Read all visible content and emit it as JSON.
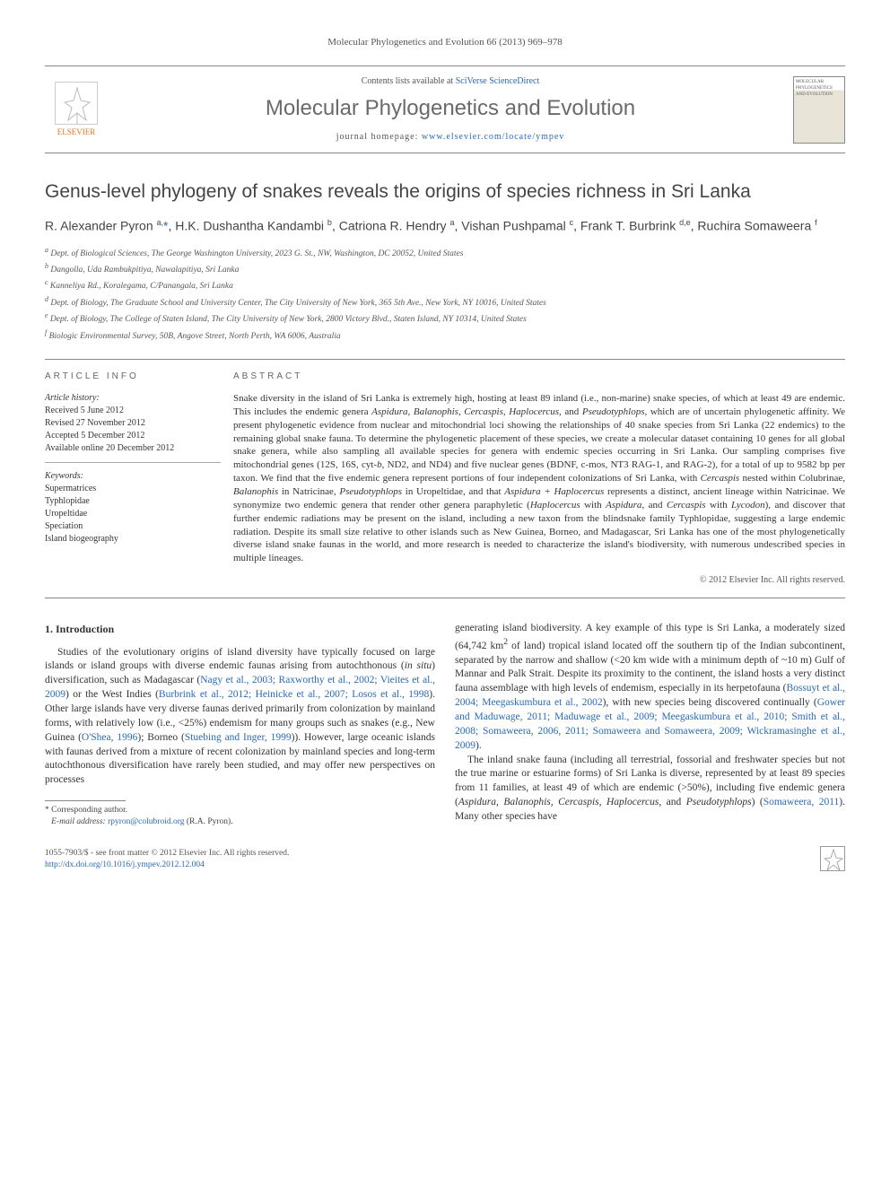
{
  "journal_ref": "Molecular Phylogenetics and Evolution 66 (2013) 969–978",
  "header": {
    "contents_prefix": "Contents lists available at ",
    "contents_link": "SciVerse ScienceDirect",
    "journal_title": "Molecular Phylogenetics and Evolution",
    "homepage_prefix": "journal homepage: ",
    "homepage_url": "www.elsevier.com/locate/ympev",
    "publisher": "ELSEVIER"
  },
  "article": {
    "title": "Genus-level phylogeny of snakes reveals the origins of species richness in Sri Lanka",
    "authors_html": "R. Alexander Pyron <sup>a,</sup><span class='author-link'>*</span>, H.K. Dushantha Kandambi <sup>b</sup>, Catriona R. Hendry <sup>a</sup>, Vishan Pushpamal <sup>c</sup>, Frank T. Burbrink <sup>d,e</sup>, Ruchira Somaweera <sup>f</sup>",
    "affiliations": [
      "a Dept. of Biological Sciences, The George Washington University, 2023 G. St., NW, Washington, DC 20052, United States",
      "b Dangolla, Uda Rambukpitiya, Nawalapitiya, Sri Lanka",
      "c Kanneliya Rd., Koralegama, C/Panangala, Sri Lanka",
      "d Dept. of Biology, The Graduate School and University Center, The City University of New York, 365 5th Ave., New York, NY 10016, United States",
      "e Dept. of Biology, The College of Staten Island, The City University of New York, 2800 Victory Blvd., Staten Island, NY 10314, United States",
      "f Biologic Environmental Survey, 50B, Angove Street, North Perth, WA 6006, Australia"
    ]
  },
  "info": {
    "heading": "ARTICLE INFO",
    "history_label": "Article history:",
    "history": [
      "Received 5 June 2012",
      "Revised 27 November 2012",
      "Accepted 5 December 2012",
      "Available online 20 December 2012"
    ],
    "keywords_label": "Keywords:",
    "keywords": [
      "Supermatrices",
      "Typhlopidae",
      "Uropeltidae",
      "Speciation",
      "Island biogeography"
    ]
  },
  "abstract": {
    "heading": "ABSTRACT",
    "text_html": "Snake diversity in the island of Sri Lanka is extremely high, hosting at least 89 inland (i.e., non-marine) snake species, of which at least 49 are endemic. This includes the endemic genera <span class='ital'>Aspidura, Balanophis, Cercaspis, Haplocercus</span>, and <span class='ital'>Pseudotyphlops</span>, which are of uncertain phylogenetic affinity. We present phylogenetic evidence from nuclear and mitochondrial loci showing the relationships of 40 snake species from Sri Lanka (22 endemics) to the remaining global snake fauna. To determine the phylogenetic placement of these species, we create a molecular dataset containing 10 genes for all global snake genera, while also sampling all available species for genera with endemic species occurring in Sri Lanka. Our sampling comprises five mitochondrial genes (12S, 16S, cyt-<span class='ital'>b</span>, ND2, and ND4) and five nuclear genes (BDNF, c-mos, NT3 RAG-1, and RAG-2), for a total of up to 9582 bp per taxon. We find that the five endemic genera represent portions of four independent colonizations of Sri Lanka, with <span class='ital'>Cercaspis</span> nested within Colubrinae, <span class='ital'>Balanophis</span> in Natricinae, <span class='ital'>Pseudotyphlops</span> in Uropeltidae, and that <span class='ital'>Aspidura + Haplocercus</span> represents a distinct, ancient lineage within Natricinae. We synonymize two endemic genera that render other genera paraphyletic (<span class='ital'>Haplocercus</span> with <span class='ital'>Aspidura</span>, and <span class='ital'>Cercaspis</span> with <span class='ital'>Lycodon</span>), and discover that further endemic radiations may be present on the island, including a new taxon from the blindsnake family Typhlopidae, suggesting a large endemic radiation. Despite its small size relative to other islands such as New Guinea, Borneo, and Madagascar, Sri Lanka has one of the most phylogenetically diverse island snake faunas in the world, and more research is needed to characterize the island's biodiversity, with numerous undescribed species in multiple lineages.",
    "copyright": "© 2012 Elsevier Inc. All rights reserved."
  },
  "body": {
    "section_title": "1. Introduction",
    "col1_html": "Studies of the evolutionary origins of island diversity have typically focused on large islands or island groups with diverse endemic faunas arising from autochthonous (<span class='ital'>in situ</span>) diversification, such as Madagascar (<span class='cite'>Nagy et al., 2003; Raxworthy et al., 2002; Vieites et al., 2009</span>) or the West Indies (<span class='cite'>Burbrink et al., 2012; Heinicke et al., 2007; Losos et al., 1998</span>). Other large islands have very diverse faunas derived primarily from colonization by mainland forms, with relatively low (i.e., &lt;25%) endemism for many groups such as snakes (e.g., New Guinea (<span class='cite'>O'Shea, 1996</span>); Borneo (<span class='cite'>Stuebing and Inger, 1999</span>)). However, large oceanic islands with faunas derived from a mixture of recent colonization by mainland species and long-term autochthonous diversification have rarely been studied, and may offer new perspectives on processes",
    "col2_p1_html": "generating island biodiversity. A key example of this type is Sri Lanka, a moderately sized (64,742 km<sup>2</sup> of land) tropical island located off the southern tip of the Indian subcontinent, separated by the narrow and shallow (&lt;20 km wide with a minimum depth of ~10 m) Gulf of Mannar and Palk Strait. Despite its proximity to the continent, the island hosts a very distinct fauna assemblage with high levels of endemism, especially in its herpetofauna (<span class='cite'>Bossuyt et al., 2004; Meegaskumbura et al., 2002</span>), with new species being discovered continually (<span class='cite'>Gower and Maduwage, 2011; Maduwage et al., 2009; Meegaskumbura et al., 2010; Smith et al., 2008; Somaweera, 2006, 2011; Somaweera and Somaweera, 2009; Wickramasinghe et al., 2009</span>).",
    "col2_p2_html": "The inland snake fauna (including all terrestrial, fossorial and freshwater species but not the true marine or estuarine forms) of Sri Lanka is diverse, represented by at least 89 species from 11 families, at least 49 of which are endemic (&gt;50%), including five endemic genera (<span class='ital'>Aspidura, Balanophis, Cercaspis, Haplocercus</span>, and <span class='ital'>Pseudotyphlops</span>) (<span class='cite'>Somaweera, 2011</span>). Many other species have"
  },
  "footnote": {
    "corr": "* Corresponding author.",
    "email_label": "E-mail address:",
    "email": "rpyron@colubroid.org",
    "email_suffix": "(R.A. Pyron)."
  },
  "bottom": {
    "issn_line": "1055-7903/$ - see front matter © 2012 Elsevier Inc. All rights reserved.",
    "doi": "http://dx.doi.org/10.1016/j.ympev.2012.12.004"
  },
  "colors": {
    "link": "#2a6ab5",
    "text": "#333333",
    "rule": "#888888",
    "orange": "#e67817"
  }
}
